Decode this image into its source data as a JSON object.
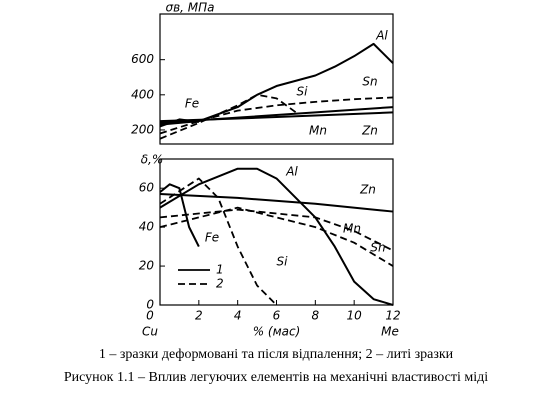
{
  "chart_data": [
    {
      "type": "line",
      "ylabel": "σв, МПа",
      "xlim": [
        0,
        12
      ],
      "ylim": [
        120,
        860
      ],
      "yticks": [
        200,
        400,
        600
      ],
      "series": [
        {
          "name": "Al",
          "color": "#000",
          "dash": false,
          "x": [
            0,
            2,
            4,
            5,
            6,
            8,
            9,
            10,
            11,
            12
          ],
          "values": [
            230,
            250,
            330,
            400,
            450,
            510,
            560,
            620,
            690,
            580
          ]
        },
        {
          "name": "Sn",
          "color": "#000",
          "dash": true,
          "x": [
            0,
            2,
            4,
            6,
            8,
            10,
            12
          ],
          "values": [
            180,
            250,
            310,
            340,
            360,
            375,
            385
          ]
        },
        {
          "name": "Si",
          "color": "#000",
          "dash": true,
          "x": [
            0,
            2,
            3,
            4,
            5,
            6,
            7
          ],
          "values": [
            150,
            240,
            290,
            340,
            400,
            380,
            300
          ]
        },
        {
          "name": "Fe",
          "color": "#000",
          "dash": false,
          "x": [
            0,
            1,
            2
          ],
          "values": [
            220,
            260,
            245
          ]
        },
        {
          "name": "Mn",
          "color": "#000",
          "dash": false,
          "x": [
            0,
            4,
            8,
            12
          ],
          "values": [
            240,
            270,
            300,
            330
          ]
        },
        {
          "name": "Zn",
          "color": "#000",
          "dash": false,
          "x": [
            0,
            4,
            8,
            12
          ],
          "values": [
            250,
            265,
            282,
            300
          ]
        }
      ]
    },
    {
      "type": "line",
      "ylabel": "δ,%",
      "xlabel": "% (мас)",
      "x_left_label": "Cu",
      "x_right_label": "Me",
      "xlim": [
        0,
        12
      ],
      "ylim": [
        0,
        75
      ],
      "xticks": [
        0,
        2,
        4,
        6,
        8,
        10,
        12
      ],
      "yticks": [
        0,
        20,
        40,
        60
      ],
      "legend": [
        {
          "label": "1",
          "dash": false
        },
        {
          "label": "2",
          "dash": true
        }
      ],
      "series": [
        {
          "name": "Al",
          "color": "#000",
          "dash": false,
          "x": [
            0,
            2,
            4,
            5,
            6,
            8,
            9,
            10,
            11,
            12
          ],
          "values": [
            50,
            62,
            70,
            70,
            65,
            45,
            30,
            12,
            3,
            0
          ]
        },
        {
          "name": "Zn",
          "color": "#000",
          "dash": false,
          "x": [
            0,
            4,
            8,
            12
          ],
          "values": [
            57,
            55,
            52,
            48
          ]
        },
        {
          "name": "Mn",
          "color": "#000",
          "dash": true,
          "x": [
            0,
            4,
            8,
            10,
            12
          ],
          "values": [
            45,
            49,
            45,
            38,
            28
          ]
        },
        {
          "name": "Sn",
          "color": "#000",
          "dash": true,
          "x": [
            0,
            4,
            8,
            10,
            12
          ],
          "values": [
            40,
            50,
            40,
            32,
            20
          ]
        },
        {
          "name": "Si",
          "color": "#000",
          "dash": true,
          "x": [
            0,
            2,
            3,
            4,
            5,
            6
          ],
          "values": [
            52,
            65,
            55,
            30,
            10,
            0
          ]
        },
        {
          "name": "Fe",
          "color": "#000",
          "dash": false,
          "x": [
            0,
            0.5,
            1,
            1.5,
            2
          ],
          "values": [
            58,
            62,
            60,
            40,
            30
          ]
        }
      ]
    }
  ],
  "caption": {
    "line1": "1 – зразки деформовані та після відпалення; 2 – литі зразки",
    "line2": "Рисунок 1.1 – Вплив легуючих елементів на механічні властивості міді"
  }
}
